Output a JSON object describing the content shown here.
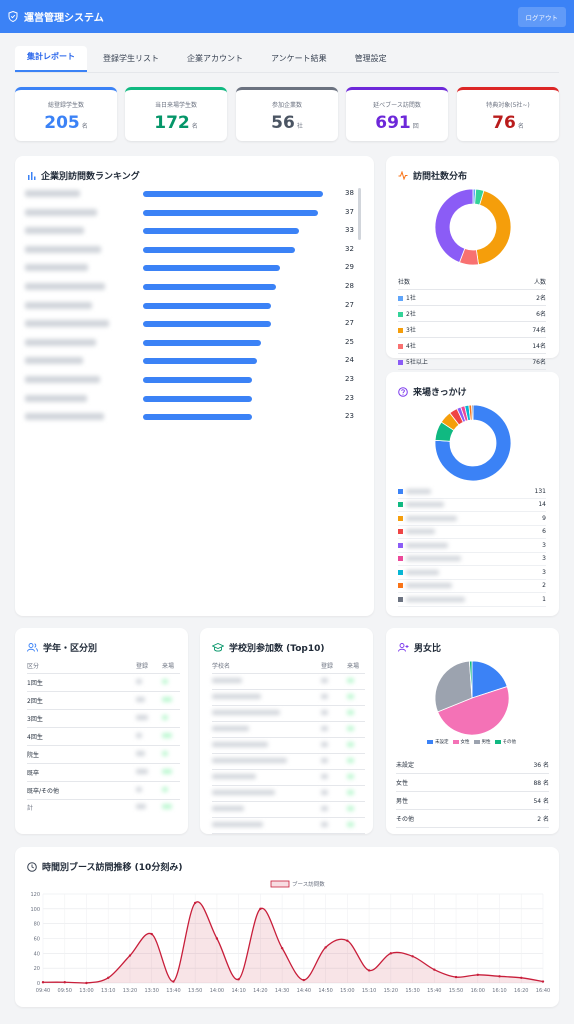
{
  "header": {
    "title": "運営管理システム",
    "logout": "ログアウト"
  },
  "tabs": [
    "集計レポート",
    "登録学生リスト",
    "企業アカウント",
    "アンケート結果",
    "管理設定"
  ],
  "kpis": [
    {
      "label": "総登録学生数",
      "value": "205",
      "unit": "名",
      "color": "#3b82f6"
    },
    {
      "label": "当日来場学生数",
      "value": "172",
      "unit": "名",
      "color": "#059669"
    },
    {
      "label": "参加企業数",
      "value": "56",
      "unit": "社",
      "color": "#4b5563"
    },
    {
      "label": "延べブース訪問数",
      "value": "691",
      "unit": "回",
      "color": "#6d28d9"
    },
    {
      "label": "特典対象(5社~)",
      "value": "76",
      "unit": "名",
      "color": "#b91c1c"
    }
  ],
  "ranking": {
    "title": "企業別訪問数ランキング",
    "values": [
      38,
      37,
      33,
      32,
      29,
      28,
      27,
      27,
      25,
      24,
      23,
      23,
      23
    ]
  },
  "visits": {
    "title": "訪問社数分布",
    "col_label": "社数",
    "col_count": "人数",
    "rows": [
      {
        "label": "1社",
        "value": "2名",
        "n": 2,
        "color": "#60a5fa"
      },
      {
        "label": "2社",
        "value": "6名",
        "n": 6,
        "color": "#34d399"
      },
      {
        "label": "3社",
        "value": "74名",
        "n": 74,
        "color": "#f59e0b"
      },
      {
        "label": "4社",
        "value": "14名",
        "n": 14,
        "color": "#f87171"
      },
      {
        "label": "5社以上",
        "value": "76名",
        "n": 76,
        "color": "#8b5cf6"
      }
    ]
  },
  "trigger": {
    "title": "来場きっかけ",
    "rows": [
      {
        "value": "131",
        "color": "#3b82f6"
      },
      {
        "value": "14",
        "color": "#10b981"
      },
      {
        "value": "9",
        "color": "#f59e0b"
      },
      {
        "value": "6",
        "color": "#ef4444"
      },
      {
        "value": "3",
        "color": "#8b5cf6"
      },
      {
        "value": "3",
        "color": "#ec4899"
      },
      {
        "value": "3",
        "color": "#06b6d4"
      },
      {
        "value": "2",
        "color": "#f97316"
      },
      {
        "value": "1",
        "color": "#6b7280"
      }
    ]
  },
  "grade": {
    "title": "学年・区分別",
    "col_cat": "区分",
    "col_reg": "登録",
    "col_att": "来場",
    "rows": [
      "1回生",
      "2回生",
      "3回生",
      "4回生",
      "院生",
      "既卒",
      "既卒/その他"
    ],
    "total": "計"
  },
  "school": {
    "title": "学校別参加数 (Top10)",
    "col_name": "学校名",
    "col_reg": "登録",
    "col_att": "来場"
  },
  "gender": {
    "title": "男女比",
    "legend": [
      {
        "label": "未設定",
        "value": "36 名",
        "n": 36,
        "color": "#3b82f6"
      },
      {
        "label": "女性",
        "value": "88 名",
        "n": 88,
        "color": "#f472b6"
      },
      {
        "label": "男性",
        "value": "54 名",
        "n": 54,
        "color": "#9ca3af"
      },
      {
        "label": "その他",
        "value": "2 名",
        "n": 2,
        "color": "#10b981"
      }
    ]
  },
  "chart_data": {
    "type": "area",
    "title": "時間別ブース訪問推移 (10分刻み)",
    "series": [
      {
        "name": "ブース訪問数",
        "values": [
          1,
          1,
          0,
          7,
          37,
          66,
          2,
          108,
          60,
          5,
          100,
          47,
          4,
          48,
          57,
          17,
          40,
          36,
          18,
          8,
          11,
          9,
          7,
          2
        ]
      }
    ],
    "x": [
      "09:40",
      "09:50",
      "13:00",
      "13:10",
      "13:20",
      "13:30",
      "13:40",
      "13:50",
      "14:00",
      "14:10",
      "14:20",
      "14:30",
      "14:40",
      "14:50",
      "15:00",
      "15:10",
      "15:20",
      "15:30",
      "15:40",
      "15:50",
      "16:00",
      "16:10",
      "16:20",
      "16:40"
    ],
    "ylim": [
      0,
      120
    ],
    "yticks": [
      0,
      20,
      40,
      60,
      80,
      100,
      120
    ],
    "color": "#c81e3a"
  }
}
